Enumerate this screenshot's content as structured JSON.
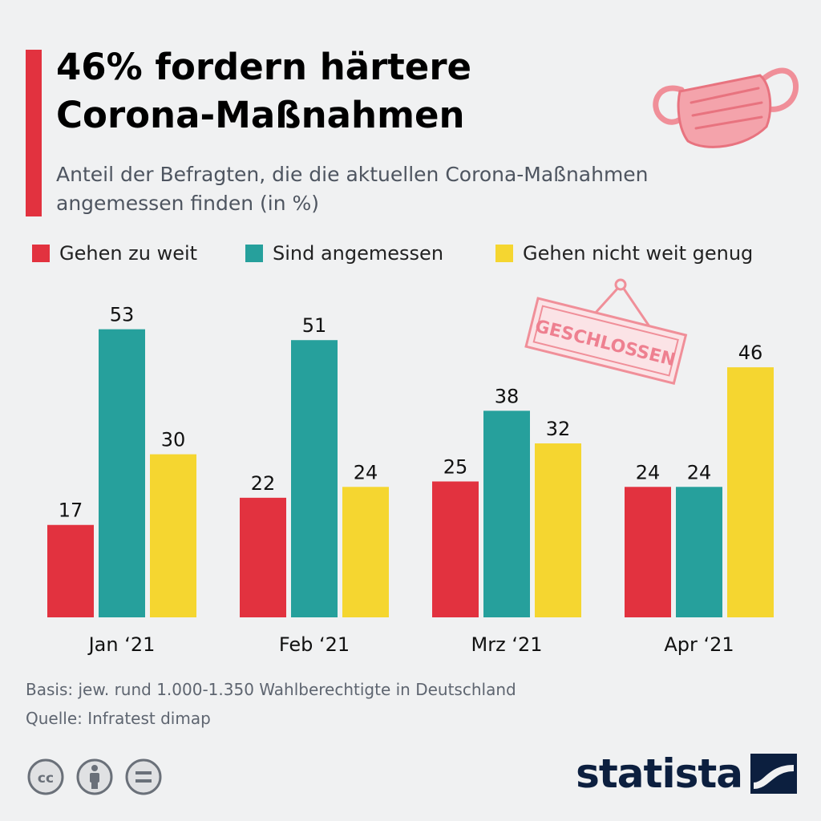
{
  "header": {
    "title": "46% fordern härtere Corona-Maßnahmen",
    "subtitle": "Anteil der Befragten, die die aktuellen Corona-Maßnahmen angemessen finden (in %)"
  },
  "sign_text": "GESCHLOSSEN",
  "colors": {
    "accent": "#e2323f",
    "red": "#e2323f",
    "teal": "#26a09c",
    "yellow": "#f5d630",
    "mask": "#f08f99"
  },
  "chart_data": {
    "type": "bar",
    "categories": [
      "Jan ‘21",
      "Feb ‘21",
      "Mrz ‘21",
      "Apr ‘21"
    ],
    "series": [
      {
        "name": "Gehen zu weit",
        "color": "#e2323f",
        "values": [
          17,
          22,
          25,
          24
        ]
      },
      {
        "name": "Sind angemessen",
        "color": "#26a09c",
        "values": [
          53,
          51,
          38,
          24
        ]
      },
      {
        "name": "Gehen nicht weit genug",
        "color": "#f5d630",
        "values": [
          30,
          24,
          32,
          46
        ]
      }
    ],
    "title": "46% fordern härtere Corona-Maßnahmen",
    "ylabel": "",
    "xlabel": "",
    "ylim": [
      0,
      58
    ],
    "legend_placement": "top"
  },
  "footer": {
    "basis": "Basis: jew. rund 1.000-1.350 Wahlberechtigte in Deutschland",
    "source": "Quelle: Infratest dimap",
    "brand": "statista"
  },
  "icons": [
    "face-mask-icon",
    "closed-sign-icon",
    "cc-icon",
    "attribution-icon",
    "no-derivatives-icon",
    "statista-logo-icon"
  ]
}
